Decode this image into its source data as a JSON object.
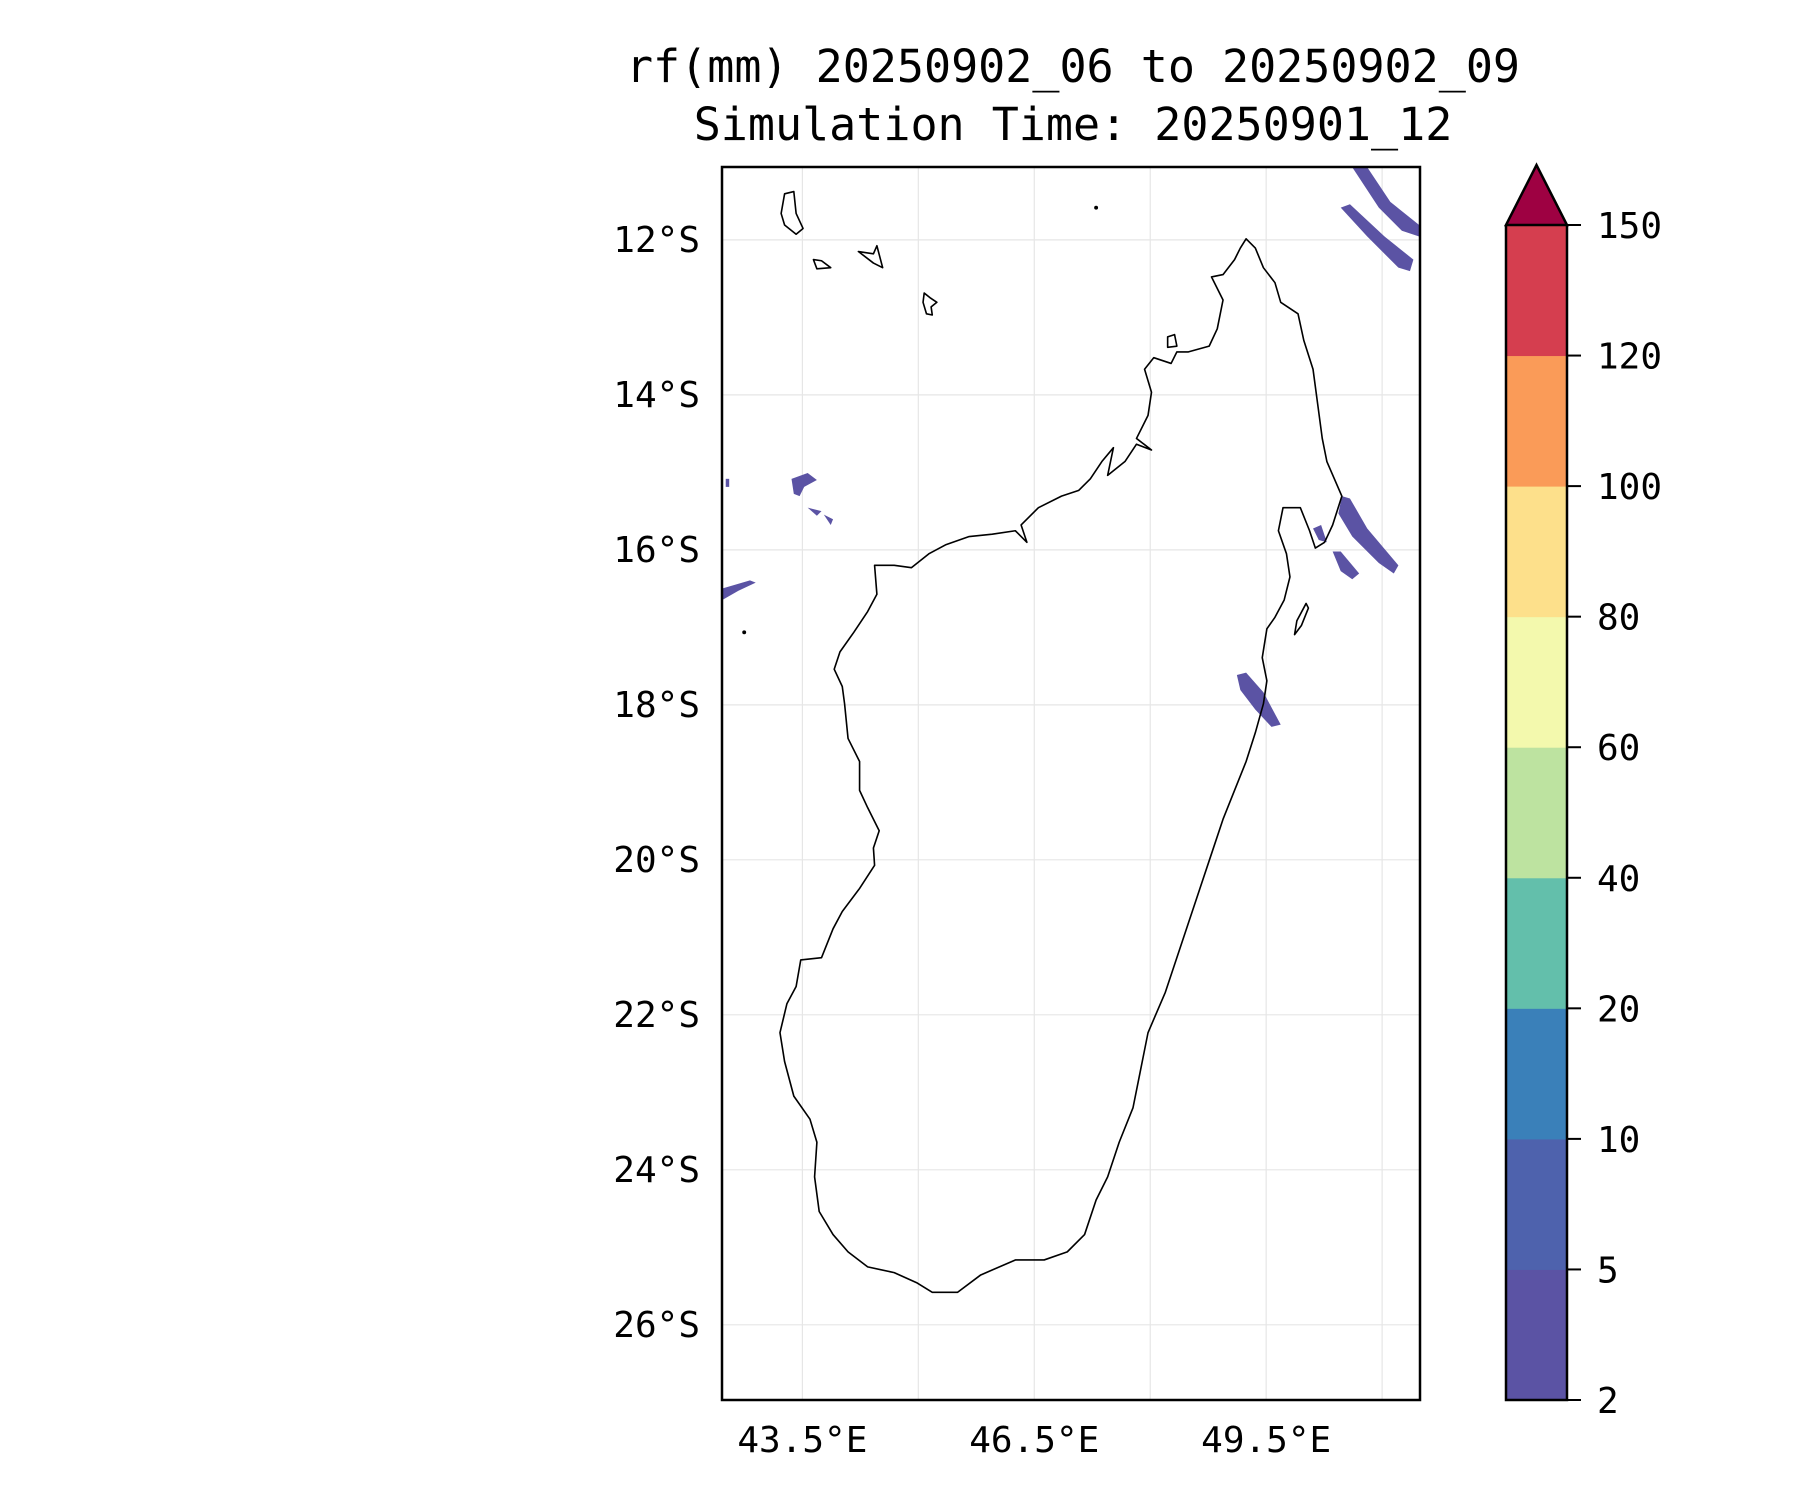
{
  "chart_data": {
    "type": "heatmap",
    "title": [
      "rf(mm) 20250902_06 to 20250902_09",
      "Simulation Time: 20250901_12"
    ],
    "xlabel": "",
    "ylabel": "",
    "xlim": [
      42.46,
      51.49
    ],
    "ylim": [
      -26.97,
      -11.06
    ],
    "grid": true,
    "x_ticks": [
      {
        "value": 43.5,
        "label": "43.5°E"
      },
      {
        "value": 46.5,
        "label": "46.5°E"
      },
      {
        "value": 49.5,
        "label": "49.5°E"
      }
    ],
    "x_gridlines": [
      43.5,
      45,
      46.5,
      48,
      49.5,
      51
    ],
    "y_ticks": [
      {
        "value": -12,
        "label": "12°S"
      },
      {
        "value": -14,
        "label": "14°S"
      },
      {
        "value": -16,
        "label": "16°S"
      },
      {
        "value": -18,
        "label": "18°S"
      },
      {
        "value": -20,
        "label": "20°S"
      },
      {
        "value": -22,
        "label": "22°S"
      },
      {
        "value": -24,
        "label": "24°S"
      },
      {
        "value": -26,
        "label": "26°S"
      }
    ],
    "colorbar": {
      "levels": [
        2,
        5,
        10,
        20,
        40,
        60,
        80,
        100,
        120,
        150
      ],
      "labels": [
        "2",
        "5",
        "10",
        "20",
        "40",
        "60",
        "80",
        "100",
        "120",
        "150"
      ],
      "colors": [
        "#5b53a4",
        "#4e62ad",
        "#3a80b9",
        "#63bfab",
        "#bde3a0",
        "#f3f9ad",
        "#fde08b",
        "#fa9b58",
        "#d53e4f"
      ],
      "extend_max_color": "#9e0142",
      "extend": "max",
      "placement": "right"
    },
    "rain_regions_color": "#5b53a4",
    "rain_regions_range_mm": [
      2,
      5
    ]
  }
}
